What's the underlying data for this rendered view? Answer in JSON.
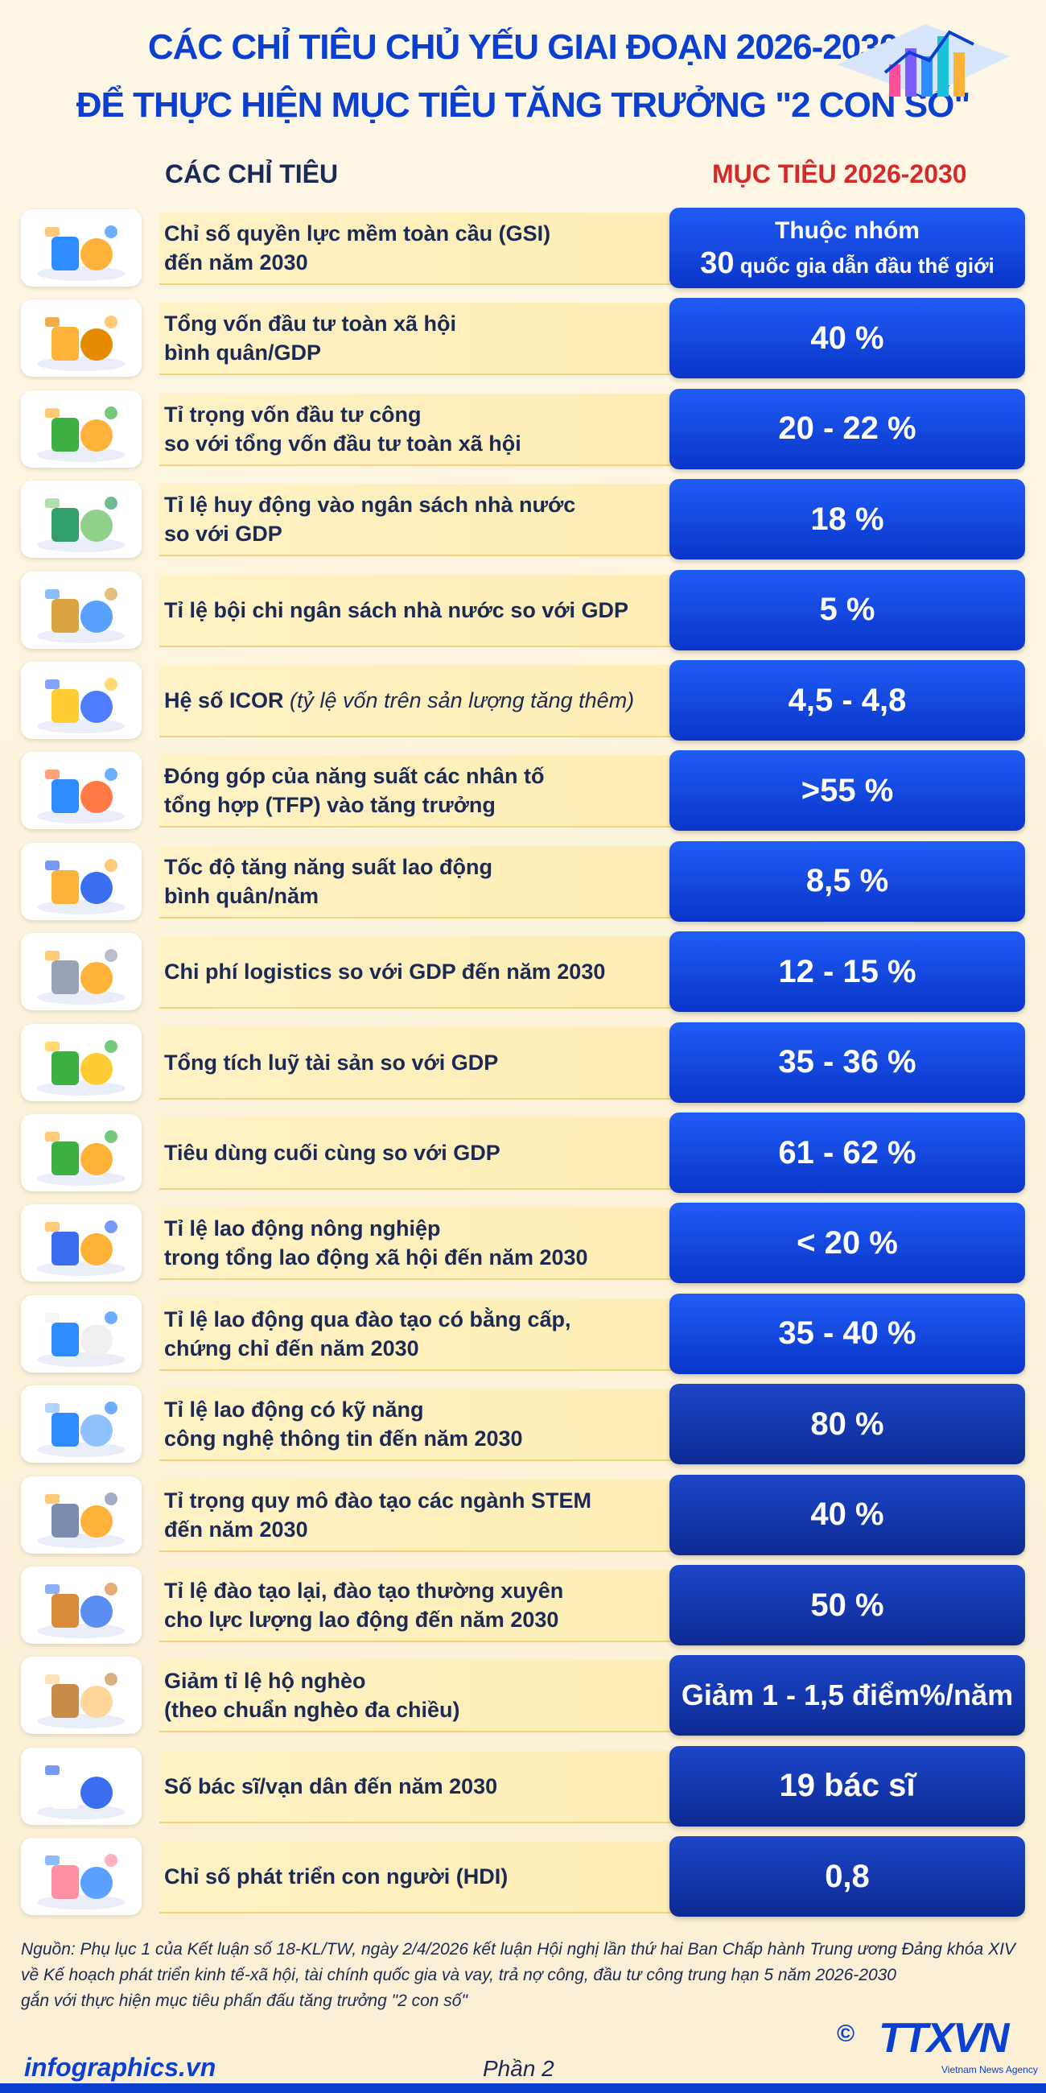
{
  "header": {
    "title_line1": "CÁC CHỈ TIÊU CHỦ YẾU GIAI ĐOẠN 2026-2030",
    "title_line2": "ĐỂ THỰC HIỆN MỤC TIÊU TĂNG TRƯỞNG \"2 CON SỐ\"",
    "col_left": "CÁC CHỈ TIÊU",
    "col_right": "MỤC TIÊU 2026-2030"
  },
  "colors": {
    "accent_blue": "#0b3fd0",
    "target_red": "#d42a2a",
    "band_yellow": "#fde9a6"
  },
  "rows": [
    {
      "icon": "world-map-icon",
      "label1": "Chỉ số quyền lực mềm toàn cầu (GSI)",
      "label2": "đến năm 2030",
      "target1": "Thuộc nhóm",
      "target2a": "30",
      "target2b": " quốc gia dẫn đầu thế giới"
    },
    {
      "icon": "coins-stack-icon",
      "label1": "Tổng vốn đầu tư toàn xã hội",
      "label2": "bình quân/GDP",
      "target": "40 %"
    },
    {
      "icon": "money-bags-icon",
      "label1": "Tỉ trọng vốn đầu tư công",
      "label2": "so với tổng vốn đầu tư toàn xã hội",
      "target": "20 - 22 %"
    },
    {
      "icon": "money-bag-dong-icon",
      "label1": "Tỉ lệ huy động vào ngân sách nhà nước",
      "label2": "so với GDP",
      "target": "18 %"
    },
    {
      "icon": "money-bags-growth-icon",
      "label1": "Tỉ lệ bội chi ngân sách nhà nước so với GDP",
      "label2": "",
      "target": "5 %"
    },
    {
      "icon": "coins-chart-icon",
      "label1": "Hệ số ICOR",
      "label1_italic": " (tỷ lệ vốn trên sản lượng tăng thêm)",
      "label2": "",
      "target": "4,5 - 4,8"
    },
    {
      "icon": "tablet-chart-icon",
      "label1": "Đóng góp của năng suất các nhân tố",
      "label2": "tổng hợp (TFP) vào tăng trưởng",
      "target": ">55 %"
    },
    {
      "icon": "workers-icon",
      "label1": "Tốc độ tăng năng suất lao động",
      "label2": "bình quân/năm",
      "target": "8,5 %"
    },
    {
      "icon": "warehouse-icon",
      "label1": "Chi phí logistics so với GDP đến năm 2030",
      "label2": "",
      "target": "12 - 15 %"
    },
    {
      "icon": "banknotes-icon",
      "label1": "Tổng tích luỹ tài sản so với GDP",
      "label2": "",
      "target": "35 - 36 %"
    },
    {
      "icon": "coin-hand-icon",
      "label1": "Tiêu dùng cuối cùng so với GDP",
      "label2": "",
      "target": "61 - 62 %"
    },
    {
      "icon": "farmer-icon",
      "label1": "Tỉ lệ lao động nông nghiệp",
      "label2": "trong tổng lao động xã hội đến năm 2030",
      "target": "< 20 %"
    },
    {
      "icon": "graduates-icon",
      "label1": "Tỉ lệ lao động qua đào tạo có bằng cấp,",
      "label2": "chứng chỉ đến năm 2030",
      "target": "35 - 40 %"
    },
    {
      "icon": "it-worker-icon",
      "label1": "Tỉ lệ lao động có kỹ năng",
      "label2": "công nghệ thông tin đến năm 2030",
      "target": "80 %"
    },
    {
      "icon": "robot-arm-icon",
      "label1": "Tỉ trọng quy mô đào tạo các ngành STEM",
      "label2": "đến năm 2030",
      "target": "40 %"
    },
    {
      "icon": "classroom-icon",
      "label1": "Tỉ lệ đào tạo lại, đào tạo thường xuyên",
      "label2": "cho lực lượng lao động đến năm 2030",
      "target": "50 %"
    },
    {
      "icon": "house-icon",
      "label1": "Giảm tỉ lệ hộ nghèo",
      "label2": "(theo chuẩn nghèo đa chiều)",
      "target": "Giảm 1 - 1,5 điểm%/năm"
    },
    {
      "icon": "doctor-icon",
      "label1": "Số bác sĩ/vạn dân đến năm 2030",
      "label2": "",
      "target": "19 bác sĩ"
    },
    {
      "icon": "family-icon",
      "label1": "Chỉ số phát triển con người (HDI)",
      "label2": "",
      "target": "0,8"
    }
  ],
  "source": {
    "line1": "Nguồn: Phụ lục 1 của Kết luận số 18-KL/TW, ngày 2/4/2026 kết luận Hội nghị lần thứ hai Ban Chấp hành Trung ương Đảng khóa XIV",
    "line2": "về Kế hoạch phát triển kinh tế-xã hội, tài chính quốc gia và vay, trả nợ công, đầu tư công trung hạn 5 năm 2026-2030",
    "line3": "gắn với thực hiện mục tiêu phấn đấu tăng trưởng \"2 con số\""
  },
  "footer": {
    "site": "infographics.vn",
    "part": "Phần 2",
    "copyright": "©",
    "logo": "TTXVN",
    "agency": "Vietnam News Agency"
  }
}
